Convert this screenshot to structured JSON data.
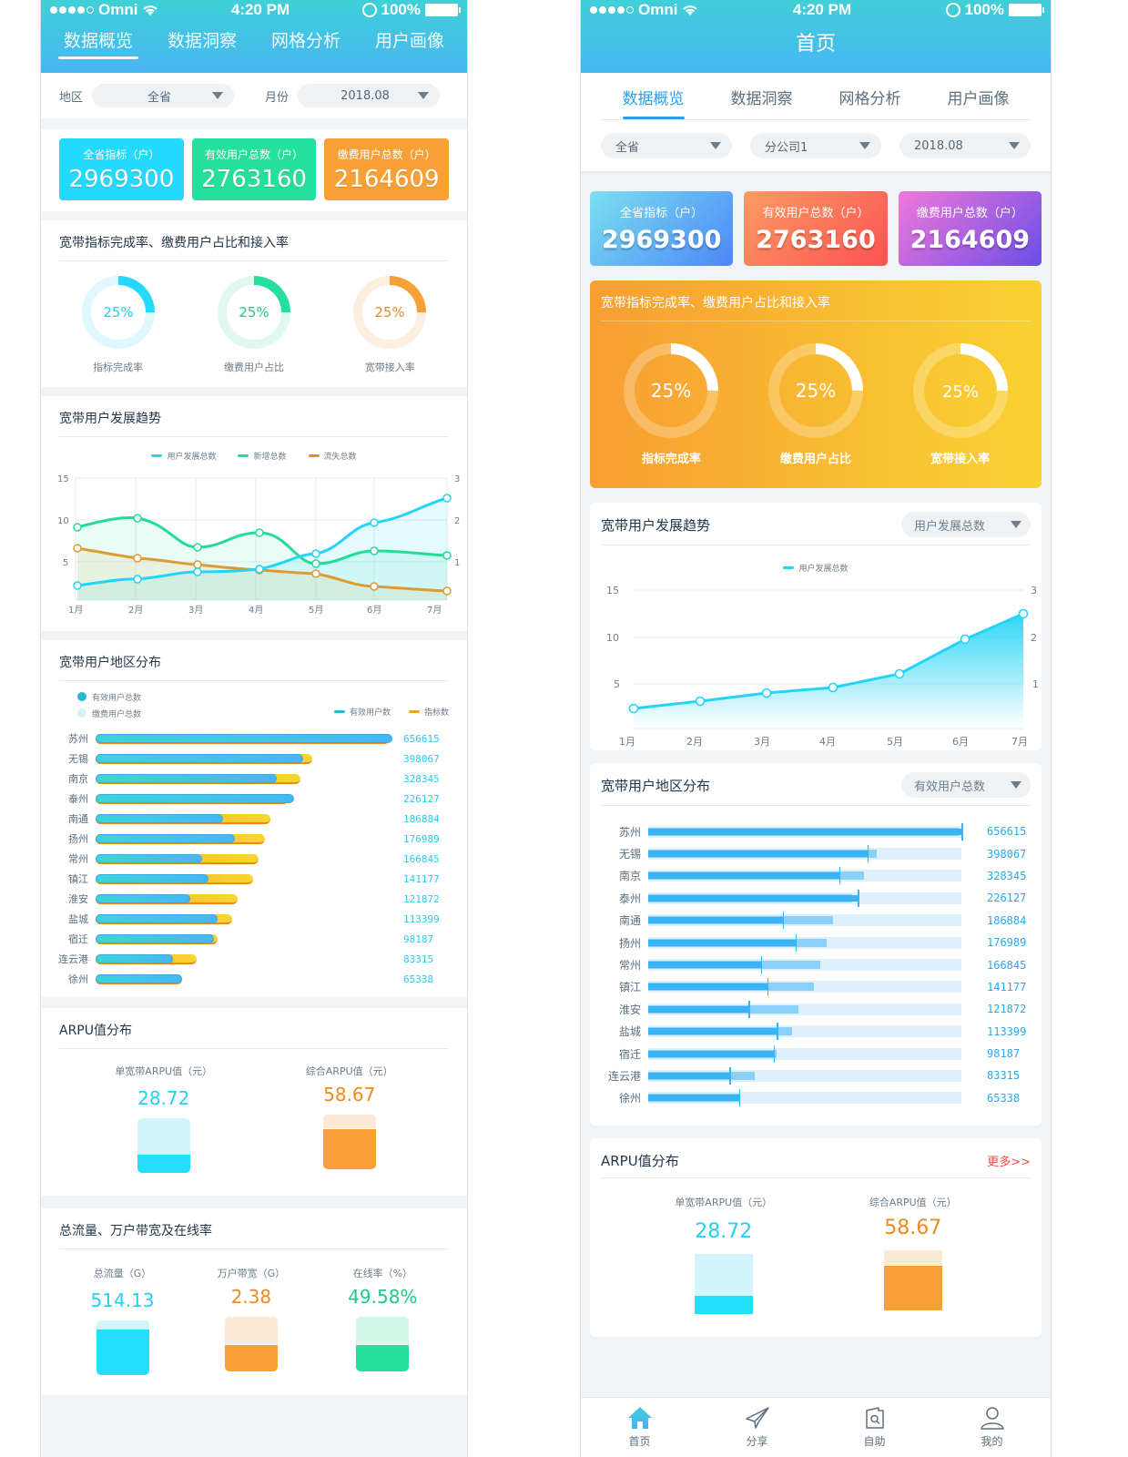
{
  "statusbar": {
    "carrier": "Omni",
    "time": "4:20 PM",
    "battery": "100%"
  },
  "screenA": {
    "tabs": [
      {
        "label": "数据概览",
        "active": true
      },
      {
        "label": "数据洞察",
        "active": false
      },
      {
        "label": "网格分析",
        "active": false
      },
      {
        "label": "用户画像",
        "active": false
      }
    ],
    "filters": {
      "region_label": "地区",
      "region_value": "全省",
      "month_label": "月份",
      "month_value": "2018.08"
    },
    "kpis": [
      {
        "label": "全省指标（户）",
        "value": "2969300",
        "color": "#24d9fc"
      },
      {
        "label": "有效用户总数（户）",
        "value": "2763160",
        "color": "#24e09c"
      },
      {
        "label": "缴费用户总数（户）",
        "value": "2164609",
        "color": "#f7a036"
      }
    ],
    "rates": {
      "title": "宽带指标完成率、缴费用户占比和接入率",
      "items": [
        {
          "label": "指标完成率",
          "value": "25%",
          "color": "#24d9fc",
          "track": "#dff7fd"
        },
        {
          "label": "缴费用户占比",
          "value": "25%",
          "color": "#24e09c",
          "track": "#e1f8ef"
        },
        {
          "label": "宽带接入率",
          "value": "25%",
          "color": "#f7a036",
          "track": "#fdefe0"
        }
      ]
    },
    "trend": {
      "title": "宽带用户发展趋势",
      "legend": [
        "用户发展总数",
        "新增总数",
        "流失总数"
      ]
    },
    "region": {
      "title": "宽带用户地区分布",
      "checks": [
        {
          "label": "有效用户总数",
          "checked": true
        },
        {
          "label": "缴费用户总数",
          "checked": false
        }
      ],
      "legend": [
        "有效用户数",
        "指标数"
      ]
    },
    "arpu": {
      "title": "ARPU值分布",
      "items": [
        {
          "label": "单宽带ARPU值（元）",
          "value": "28.72"
        },
        {
          "label": "综合ARPU值（元）",
          "value": "58.67"
        }
      ]
    },
    "traffic": {
      "title": "总流量、万户带宽及在线率",
      "items": [
        {
          "label": "总流量（G）",
          "value": "514.13"
        },
        {
          "label": "万户带宽（G）",
          "value": "2.38"
        },
        {
          "label": "在线率（%）",
          "value": "49.58%"
        }
      ]
    }
  },
  "screenB": {
    "title": "首页",
    "tabs": [
      {
        "label": "数据概览",
        "active": true
      },
      {
        "label": "数据洞察",
        "active": false
      },
      {
        "label": "网格分析",
        "active": false
      },
      {
        "label": "用户画像",
        "active": false
      }
    ],
    "filters": [
      "全省",
      "分公司1",
      "2018.08"
    ],
    "kpis": [
      {
        "label": "全省指标（户）",
        "value": "2969300"
      },
      {
        "label": "有效用户总数（户）",
        "value": "2763160"
      },
      {
        "label": "缴费用户总数（户）",
        "value": "2164609"
      }
    ],
    "rates": {
      "title": "宽带指标完成率、缴费用户占比和接入率",
      "items": [
        {
          "label": "指标完成率",
          "value": "25%"
        },
        {
          "label": "缴费用户占比",
          "value": "25%"
        },
        {
          "label": "宽带接入率",
          "value": "25%"
        }
      ]
    },
    "trend": {
      "title": "宽带用户发展趋势",
      "select": "用户发展总数",
      "legend": [
        "用户发展总数"
      ]
    },
    "region": {
      "title": "宽带用户地区分布",
      "select": "有效用户总数"
    },
    "arpu": {
      "title": "ARPU值分布",
      "more": "更多>>",
      "items": [
        {
          "label": "单宽带ARPU值（元）",
          "value": "28.72"
        },
        {
          "label": "综合ARPU值（元）",
          "value": "58.67"
        }
      ]
    },
    "tabbar": [
      {
        "label": "首页",
        "icon": "home-icon",
        "active": true
      },
      {
        "label": "分享",
        "icon": "paper-plane-icon",
        "active": false
      },
      {
        "label": "自助",
        "icon": "search-doc-icon",
        "active": false
      },
      {
        "label": "我的",
        "icon": "user-icon",
        "active": false
      }
    ]
  },
  "chart_data": [
    {
      "type": "line",
      "title": "宽带用户发展趋势",
      "categories": [
        "1月",
        "2月",
        "3月",
        "4月",
        "5月",
        "6月",
        "7月"
      ],
      "yticks_left": [
        5,
        10,
        15
      ],
      "yticks_right": [
        1,
        2,
        3
      ],
      "ylim": [
        0,
        15
      ],
      "series": [
        {
          "name": "用户发展总数",
          "color": "#24d4f7",
          "values": [
            1.8,
            2.6,
            3.3,
            3.7,
            5.5,
            9.2,
            12.2
          ]
        },
        {
          "name": "新增总数",
          "color": "#23dc96",
          "values": [
            8.8,
            10.0,
            6.3,
            8.0,
            4.2,
            5.9,
            5.3
          ]
        },
        {
          "name": "流失总数",
          "color": "#dd9b36",
          "values": [
            6.3,
            5.0,
            4.3,
            3.5,
            3.1,
            1.5,
            1.0
          ]
        }
      ]
    },
    {
      "type": "line",
      "title": "宽带用户发展趋势 (右)",
      "categories": [
        "1月",
        "2月",
        "3月",
        "4月",
        "5月",
        "6月",
        "7月"
      ],
      "yticks_left": [
        5,
        10,
        15
      ],
      "yticks_right": [
        1,
        2,
        3
      ],
      "ylim": [
        0,
        15
      ],
      "series": [
        {
          "name": "用户发展总数",
          "color": "#24d4f7",
          "values": [
            1.7,
            2.5,
            3.4,
            4.0,
            5.7,
            9.4,
            12.3
          ]
        }
      ]
    },
    {
      "type": "bar",
      "title": "宽带用户地区分布",
      "categories": [
        "苏州",
        "无锡",
        "南京",
        "泰州",
        "南通",
        "扬州",
        "常州",
        "镇江",
        "淮安",
        "盐城",
        "宿迁",
        "连云港",
        "徐州"
      ],
      "values": [
        656615,
        398067,
        328345,
        226127,
        186884,
        176989,
        166845,
        141177,
        121872,
        113399,
        98187,
        83315,
        65338
      ],
      "series": [
        {
          "name": "有效用户数",
          "relative": [
            1.0,
            0.7,
            0.61,
            0.67,
            0.43,
            0.47,
            0.36,
            0.38,
            0.32,
            0.41,
            0.4,
            0.26,
            0.29
          ]
        },
        {
          "name": "指标数",
          "relative": [
            0.99,
            0.73,
            0.69,
            0.65,
            0.59,
            0.57,
            0.55,
            0.53,
            0.48,
            0.46,
            0.41,
            0.34,
            0.29
          ]
        }
      ]
    },
    {
      "type": "bar",
      "title": "ARPU值分布",
      "categories": [
        "单宽带ARPU值（元）",
        "综合ARPU值（元）"
      ],
      "values": [
        28.72,
        58.67
      ]
    }
  ]
}
